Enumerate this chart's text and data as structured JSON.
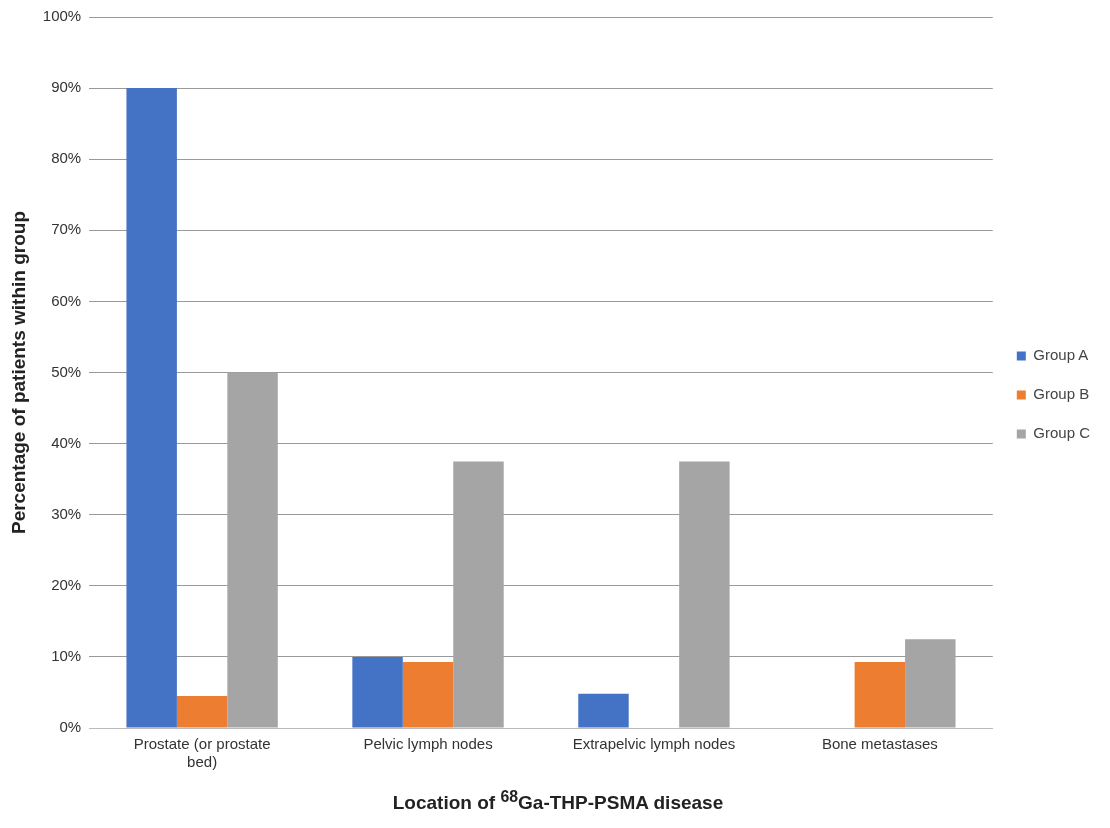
{
  "chart_data": {
    "type": "bar",
    "xlabel": "Location of $^{68}$Ga-THP-PSMA disease",
    "ylabel": "Percentage of patients within group",
    "categories": [
      "Prostate (or prostate bed)",
      "Pelvic lymph nodes",
      "Extrapelvic lymph nodes",
      "Bone metastases"
    ],
    "series": [
      {
        "name": "Group A",
        "color": "#4472c4",
        "values": [
          90,
          10,
          4.8,
          0
        ]
      },
      {
        "name": "Group B",
        "color": "#ed7d31",
        "values": [
          4.5,
          9.3,
          0,
          9.3
        ]
      },
      {
        "name": "Group C",
        "color": "#a5a5a5",
        "values": [
          50,
          37.5,
          37.5,
          12.5
        ]
      }
    ],
    "ylim": [
      0,
      100
    ],
    "yticks": [
      {
        "value": 0,
        "label": "0%"
      },
      {
        "value": 10,
        "label": "10%"
      },
      {
        "value": 20,
        "label": "20%"
      },
      {
        "value": 30,
        "label": "30%"
      },
      {
        "value": 40,
        "label": "40%"
      },
      {
        "value": 50,
        "label": "50%"
      },
      {
        "value": 60,
        "label": "60%"
      },
      {
        "value": 70,
        "label": "70%"
      },
      {
        "value": 80,
        "label": "80%"
      },
      {
        "value": 90,
        "label": "90%"
      },
      {
        "value": 100,
        "label": "100%"
      }
    ],
    "grid": "y",
    "legend": "right"
  }
}
